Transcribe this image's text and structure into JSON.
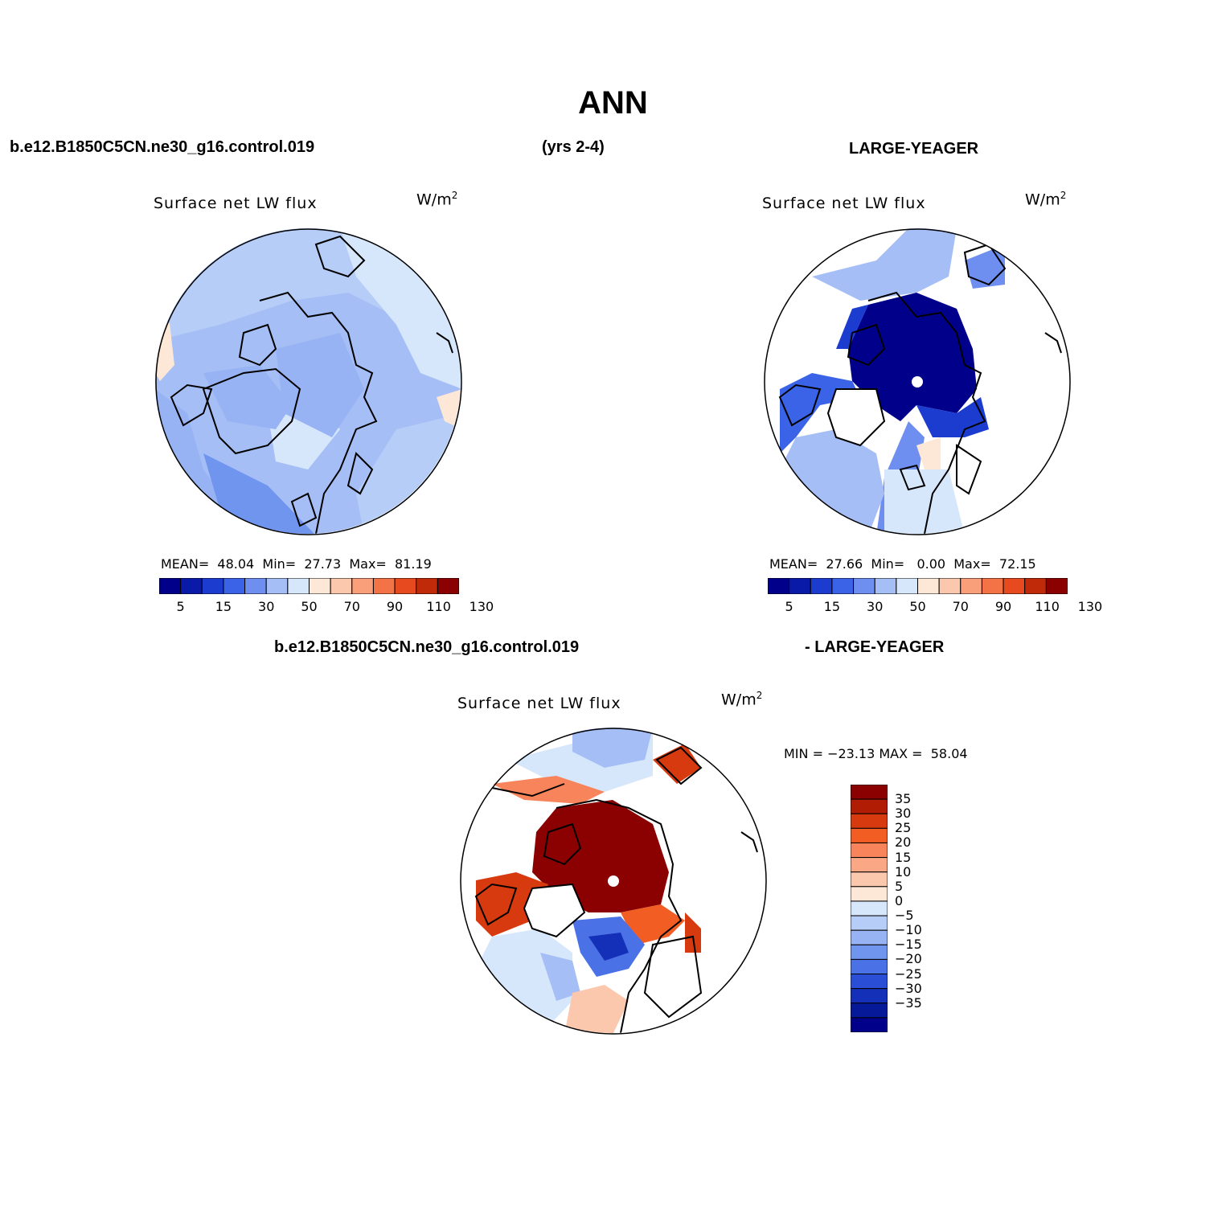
{
  "title": "ANN",
  "header": {
    "case": "b.e12.B1850C5CN.ne30_g16.control.019",
    "years": "(yrs 2-4)",
    "obs": "LARGE-YEAGER",
    "diff_case": "b.e12.B1850C5CN.ne30_g16.control.019",
    "diff_obs": "- LARGE-YEAGER"
  },
  "panels": [
    {
      "title": "Surface net LW flux",
      "units_base": "W/m",
      "units_exp": "2",
      "mean_label": "MEAN=",
      "mean": "48.04",
      "min_label": "Min=",
      "min": "27.73",
      "max_label": "Max=",
      "max": "81.19",
      "field": "mostly 50-60 W/m2, pale orange near Greenland and Pacific edges"
    },
    {
      "title": "Surface net LW flux",
      "units_base": "W/m",
      "units_exp": "2",
      "mean_label": "MEAN=",
      "mean": "27.66",
      "min_label": "Min=",
      "min": "0.00",
      "max_label": "Max=",
      "max": "72.15",
      "field": "deep blue over Arctic Ocean, white (missing) over land"
    },
    {
      "title": "Surface net LW flux",
      "units_base": "W/m",
      "units_exp": "2",
      "minmax": "MIN = −23.13 MAX =  58.04",
      "field": "dark red over Arctic Ocean, blue over Barents/Kara region"
    }
  ],
  "colorbar_abs": {
    "colors": [
      "#00008b",
      "#0a1aa8",
      "#1b3ccf",
      "#3a63e8",
      "#6f8ff0",
      "#a5bef6",
      "#d6e6fb",
      "#fde8d8",
      "#fcc8ad",
      "#f9a07a",
      "#f47346",
      "#e84a1f",
      "#c12a08",
      "#8b0000"
    ],
    "ticks": [
      "5",
      "15",
      "30",
      "50",
      "70",
      "90",
      "110",
      "130"
    ]
  },
  "colorbar_diff": {
    "colors": [
      "#8b0000",
      "#b01d04",
      "#d63a0e",
      "#f25d23",
      "#f7845a",
      "#f9a784",
      "#fcc8ad",
      "#fde8d8",
      "#d6e6fb",
      "#b6cdf7",
      "#98b3f3",
      "#7095ee",
      "#4a72e6",
      "#2a4fd6",
      "#1430b8",
      "#061a99",
      "#00008b"
    ],
    "labels": [
      "35",
      "30",
      "25",
      "20",
      "15",
      "10",
      "5",
      "0",
      "−5",
      "−10",
      "−15",
      "−20",
      "−25",
      "−30",
      "−35"
    ]
  }
}
